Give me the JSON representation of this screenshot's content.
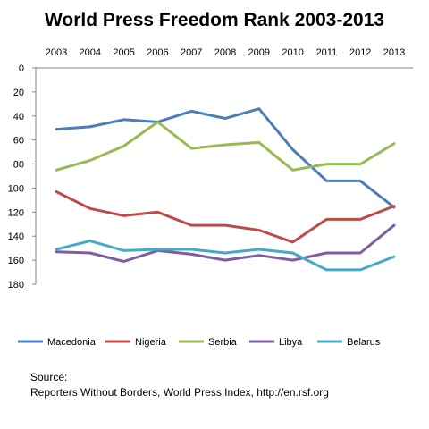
{
  "chart_data": {
    "type": "line",
    "title": "World Press Freedom Rank 2003-2013",
    "x": [
      "2003",
      "2004",
      "2005",
      "2006",
      "2007",
      "2008",
      "2009",
      "2010",
      "2011",
      "2012",
      "2013"
    ],
    "y_ticks": [
      "0",
      "20",
      "40",
      "60",
      "80",
      "100",
      "120",
      "140",
      "160",
      "180"
    ],
    "ylim": [
      0,
      180
    ],
    "y_axis_reversed": true,
    "x_axis_position": "top",
    "grid": false,
    "legend_position": "bottom",
    "series": [
      {
        "name": "Macedonia",
        "color": "#4a7ebb",
        "values": [
          51,
          49,
          43,
          45,
          36,
          42,
          34,
          68,
          94,
          94,
          116
        ]
      },
      {
        "name": "Nigeria",
        "color": "#be4b48",
        "values": [
          103,
          117,
          123,
          120,
          131,
          131,
          135,
          145,
          126,
          126,
          115
        ]
      },
      {
        "name": "Serbia",
        "color": "#98b954",
        "values": [
          85,
          77,
          65,
          45,
          67,
          64,
          62,
          85,
          80,
          80,
          63
        ]
      },
      {
        "name": "Libya",
        "color": "#7d5fa0",
        "values": [
          153,
          154,
          161,
          152,
          155,
          160,
          156,
          160,
          154,
          154,
          131
        ]
      },
      {
        "name": "Belarus",
        "color": "#46aac5",
        "values": [
          151,
          144,
          152,
          151,
          151,
          154,
          151,
          154,
          168,
          168,
          157
        ]
      }
    ]
  },
  "source": {
    "label": "Source:",
    "text": "Reporters Without Borders, World Press Index, http://en.rsf.org"
  }
}
